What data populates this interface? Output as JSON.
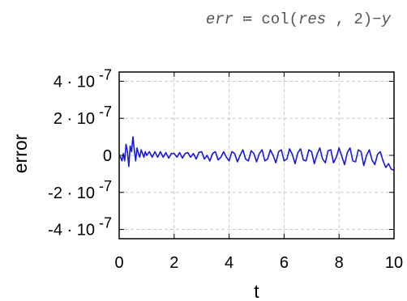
{
  "formula": {
    "lhs": "err",
    "assign": "≔",
    "func": "col",
    "open": "(",
    "arg1": "res",
    "comma": ",",
    "arg2": "2",
    "close": ")",
    "minus": "−",
    "rhs": "y"
  },
  "colors": {
    "series": "#1a1ad6",
    "grid": "#c8c8c8",
    "axis": "#000000"
  },
  "chart_data": {
    "type": "line",
    "xlabel": "t",
    "ylabel": "error",
    "xlim": [
      0,
      10
    ],
    "ylim": [
      -4.5e-07,
      4.5e-07
    ],
    "x_ticks": [
      {
        "value": 0,
        "label": "0"
      },
      {
        "value": 2,
        "label": "2"
      },
      {
        "value": 4,
        "label": "4"
      },
      {
        "value": 6,
        "label": "6"
      },
      {
        "value": 8,
        "label": "8"
      },
      {
        "value": 10,
        "label": "10"
      }
    ],
    "y_ticks": [
      {
        "value": 4e-07,
        "mantissa": "4",
        "dot": "·",
        "base": "10",
        "exp": "-7"
      },
      {
        "value": 2e-07,
        "mantissa": "2",
        "dot": "·",
        "base": "10",
        "exp": "-7"
      },
      {
        "value": 0,
        "mantissa": "0",
        "dot": "",
        "base": "",
        "exp": ""
      },
      {
        "value": -2e-07,
        "mantissa": "-2",
        "dot": "·",
        "base": "10",
        "exp": "-7"
      },
      {
        "value": -4e-07,
        "mantissa": "-4",
        "dot": "·",
        "base": "10",
        "exp": "-7"
      }
    ],
    "grid": true,
    "series": [
      {
        "x": [
          0.0,
          0.05,
          0.1,
          0.15,
          0.2,
          0.25,
          0.3,
          0.35,
          0.4,
          0.45,
          0.5,
          0.55,
          0.6,
          0.65,
          0.7,
          0.75,
          0.8,
          0.85,
          0.9,
          0.95,
          1.0,
          1.1,
          1.2,
          1.3,
          1.4,
          1.5,
          1.6,
          1.7,
          1.8,
          1.9,
          2.0,
          2.1,
          2.2,
          2.3,
          2.4,
          2.5,
          2.6,
          2.7,
          2.8,
          2.9,
          3.0,
          3.1,
          3.2,
          3.3,
          3.4,
          3.5,
          3.6,
          3.7,
          3.8,
          3.9,
          4.0,
          4.1,
          4.2,
          4.3,
          4.4,
          4.5,
          4.6,
          4.7,
          4.8,
          4.9,
          5.0,
          5.1,
          5.2,
          5.3,
          5.4,
          5.5,
          5.6,
          5.7,
          5.8,
          5.9,
          6.0,
          6.1,
          6.2,
          6.3,
          6.4,
          6.5,
          6.6,
          6.7,
          6.8,
          6.9,
          7.0,
          7.1,
          7.2,
          7.3,
          7.4,
          7.5,
          7.6,
          7.7,
          7.8,
          7.9,
          8.0,
          8.1,
          8.2,
          8.3,
          8.4,
          8.5,
          8.6,
          8.7,
          8.8,
          8.9,
          9.0,
          9.1,
          9.2,
          9.3,
          9.4,
          9.5,
          9.6,
          9.7,
          9.8,
          9.9,
          10.0
        ],
        "y": [
          0.0,
          -1e-08,
          -3e-08,
          1e-08,
          -3e-08,
          6e-08,
          2e-08,
          -6e-08,
          5e-08,
          2e-08,
          1e-07,
          3e-08,
          -3e-08,
          4e-08,
          1e-08,
          -1e-08,
          3e-08,
          1e-08,
          -1e-08,
          2e-08,
          0.0,
          2e-08,
          -1e-08,
          2e-08,
          -1e-08,
          2e-08,
          -1e-08,
          1.5e-08,
          -1.5e-08,
          1e-08,
          1e-08,
          -1e-08,
          1.5e-08,
          -1.5e-08,
          1e-08,
          1.5e-08,
          -1e-08,
          1e-08,
          -2e-08,
          1.5e-08,
          2e-08,
          -2e-08,
          0.0,
          -3e-08,
          1e-08,
          2e-08,
          -2.5e-08,
          -1e-08,
          2e-08,
          -1e-08,
          -3e-08,
          2e-08,
          1e-08,
          -3.5e-08,
          0.0,
          3e-08,
          -2e-08,
          -3e-08,
          2.5e-08,
          1e-08,
          -3.5e-08,
          1e-08,
          3e-08,
          -3e-08,
          -2e-08,
          3e-08,
          0.0,
          -4e-08,
          2e-08,
          3e-08,
          -3e-08,
          -2e-08,
          3.5e-08,
          5e-09,
          -4.5e-08,
          1.5e-08,
          3.5e-08,
          -2.5e-08,
          -3e-08,
          3e-08,
          2e-08,
          -4.5e-08,
          5e-09,
          4e-08,
          -2e-08,
          -4e-08,
          2.5e-08,
          3e-08,
          -4e-08,
          -1e-08,
          4e-08,
          -5e-09,
          -5e-08,
          1.5e-08,
          4e-08,
          -3e-08,
          -3.5e-08,
          3e-08,
          2e-08,
          -5.5e-08,
          0.0,
          3e-08,
          -2.5e-08,
          -5e-08,
          5e-09,
          2e-08,
          -3e-08,
          -6.5e-08,
          -4.5e-08,
          -7.5e-08,
          -8e-08
        ]
      }
    ]
  }
}
